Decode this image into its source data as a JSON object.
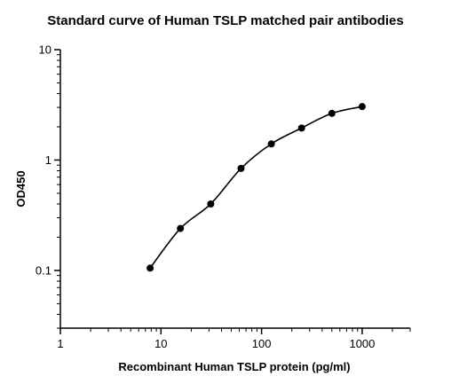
{
  "chart_data": {
    "type": "scatter",
    "title": "Standard curve of Human TSLP matched pair antibodies",
    "xlabel": "Recombinant Human TSLP protein (pg/ml)",
    "ylabel": "OD450",
    "x_scale": "log",
    "y_scale": "log",
    "xlim": [
      1,
      3000
    ],
    "ylim": [
      0.03,
      10
    ],
    "x_ticks": [
      1,
      10,
      100,
      1000
    ],
    "x_tick_labels": [
      "1",
      "10",
      "100",
      "1000"
    ],
    "y_ticks": [
      0.1,
      1,
      10
    ],
    "y_tick_labels": [
      "0.1",
      "1",
      "10"
    ],
    "grid": false,
    "legend": "none",
    "series": [
      {
        "x": [
          7.8,
          15.6,
          31.25,
          62.5,
          125,
          250,
          500,
          1000
        ],
        "y": [
          0.105,
          0.24,
          0.4,
          0.84,
          1.4,
          1.95,
          2.65,
          3.05
        ],
        "marker": "circle",
        "fit_curve": true,
        "color": "#000000"
      }
    ]
  }
}
